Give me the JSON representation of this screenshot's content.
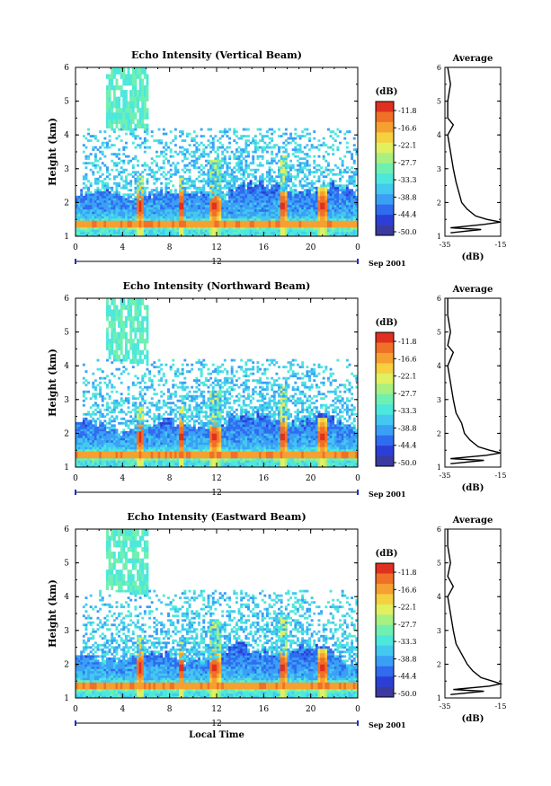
{
  "chart_data": [
    {
      "type": "heatmap",
      "title": "Echo Intensity (Vertical Beam)",
      "ylabel": "Height (km)",
      "xlabel": "",
      "xlim": [
        0,
        24
      ],
      "ylim": [
        1,
        6
      ],
      "xticks": [
        "0",
        "4",
        "8",
        "12",
        "16",
        "20",
        "0"
      ],
      "yticks": [
        "1",
        "2",
        "3",
        "4",
        "5",
        "6"
      ],
      "date_mid": "12",
      "date_label": "Sep 2001",
      "colorbar": {
        "unit": "(dB)",
        "ticks": [
          "-11.8",
          "-16.6",
          "-22.1",
          "-27.7",
          "-33.3",
          "-38.8",
          "-44.4",
          "-50.0"
        ],
        "range": [
          -50.0,
          -11.0
        ]
      },
      "average": {
        "title": "Average",
        "xlabel": "(dB)",
        "xticks": [
          "-35",
          "-15"
        ],
        "yticks": [
          "1",
          "2",
          "3",
          "4",
          "5",
          "6"
        ],
        "xlim": [
          -35,
          -15
        ],
        "profile": [
          [
            1.1,
            -33
          ],
          [
            1.2,
            -22
          ],
          [
            1.25,
            -33
          ],
          [
            1.35,
            -21
          ],
          [
            1.42,
            -15
          ],
          [
            1.5,
            -20
          ],
          [
            1.6,
            -24
          ],
          [
            1.8,
            -27
          ],
          [
            2.0,
            -29
          ],
          [
            2.3,
            -30
          ],
          [
            2.6,
            -31
          ],
          [
            3.0,
            -32
          ],
          [
            3.5,
            -33
          ],
          [
            4.0,
            -34
          ],
          [
            4.3,
            -32
          ],
          [
            4.5,
            -34
          ],
          [
            5.0,
            -34
          ],
          [
            5.5,
            -33
          ],
          [
            6.0,
            -34
          ]
        ]
      }
    },
    {
      "type": "heatmap",
      "title": "Echo Intensity (Northward Beam)",
      "ylabel": "Height (km)",
      "xlabel": "",
      "xlim": [
        0,
        24
      ],
      "ylim": [
        1,
        6
      ],
      "xticks": [
        "0",
        "4",
        "8",
        "12",
        "16",
        "20",
        "0"
      ],
      "yticks": [
        "1",
        "2",
        "3",
        "4",
        "5",
        "6"
      ],
      "date_mid": "12",
      "date_label": "Sep 2001",
      "colorbar": {
        "unit": "(dB)",
        "ticks": [
          "-11.8",
          "-16.6",
          "-22.1",
          "-27.7",
          "-33.3",
          "-38.8",
          "-44.4",
          "-50.0"
        ],
        "range": [
          -50.0,
          -11.0
        ]
      },
      "average": {
        "title": "Average",
        "xlabel": "(dB)",
        "xticks": [
          "-35",
          "-15"
        ],
        "yticks": [
          "1",
          "2",
          "3",
          "4",
          "5",
          "6"
        ],
        "xlim": [
          -35,
          -15
        ],
        "profile": [
          [
            1.1,
            -33
          ],
          [
            1.2,
            -21
          ],
          [
            1.25,
            -33
          ],
          [
            1.35,
            -20
          ],
          [
            1.42,
            -15
          ],
          [
            1.5,
            -19
          ],
          [
            1.6,
            -23
          ],
          [
            1.8,
            -26
          ],
          [
            2.0,
            -28
          ],
          [
            2.3,
            -29
          ],
          [
            2.6,
            -31
          ],
          [
            3.0,
            -32
          ],
          [
            3.5,
            -33
          ],
          [
            4.0,
            -34
          ],
          [
            4.4,
            -32
          ],
          [
            4.6,
            -34
          ],
          [
            5.0,
            -33
          ],
          [
            5.5,
            -34
          ],
          [
            6.0,
            -34
          ]
        ]
      }
    },
    {
      "type": "heatmap",
      "title": "Echo Intensity (Eastward Beam)",
      "ylabel": "Height (km)",
      "xlabel": "Local Time",
      "xlim": [
        0,
        24
      ],
      "ylim": [
        1,
        6
      ],
      "xticks": [
        "0",
        "4",
        "8",
        "12",
        "16",
        "20",
        "0"
      ],
      "yticks": [
        "1",
        "2",
        "3",
        "4",
        "5",
        "6"
      ],
      "date_mid": "12",
      "date_label": "Sep 2001",
      "colorbar": {
        "unit": "(dB)",
        "ticks": [
          "-11.8",
          "-16.6",
          "-22.1",
          "-27.7",
          "-33.3",
          "-38.8",
          "-44.4",
          "-50.0"
        ],
        "range": [
          -50.0,
          -11.0
        ]
      },
      "average": {
        "title": "Average",
        "xlabel": "(dB)",
        "xticks": [
          "-35",
          "-15"
        ],
        "yticks": [
          "1",
          "2",
          "3",
          "4",
          "5",
          "6"
        ],
        "xlim": [
          -35,
          -15
        ],
        "profile": [
          [
            1.1,
            -33
          ],
          [
            1.2,
            -21
          ],
          [
            1.25,
            -32
          ],
          [
            1.35,
            -19
          ],
          [
            1.42,
            -15
          ],
          [
            1.5,
            -18
          ],
          [
            1.6,
            -22
          ],
          [
            1.8,
            -25
          ],
          [
            2.0,
            -27
          ],
          [
            2.3,
            -29
          ],
          [
            2.6,
            -31
          ],
          [
            3.0,
            -32
          ],
          [
            3.5,
            -33
          ],
          [
            4.0,
            -34
          ],
          [
            4.3,
            -32
          ],
          [
            4.6,
            -34
          ],
          [
            5.0,
            -33
          ],
          [
            5.5,
            -34
          ],
          [
            6.0,
            -34
          ]
        ]
      }
    }
  ]
}
